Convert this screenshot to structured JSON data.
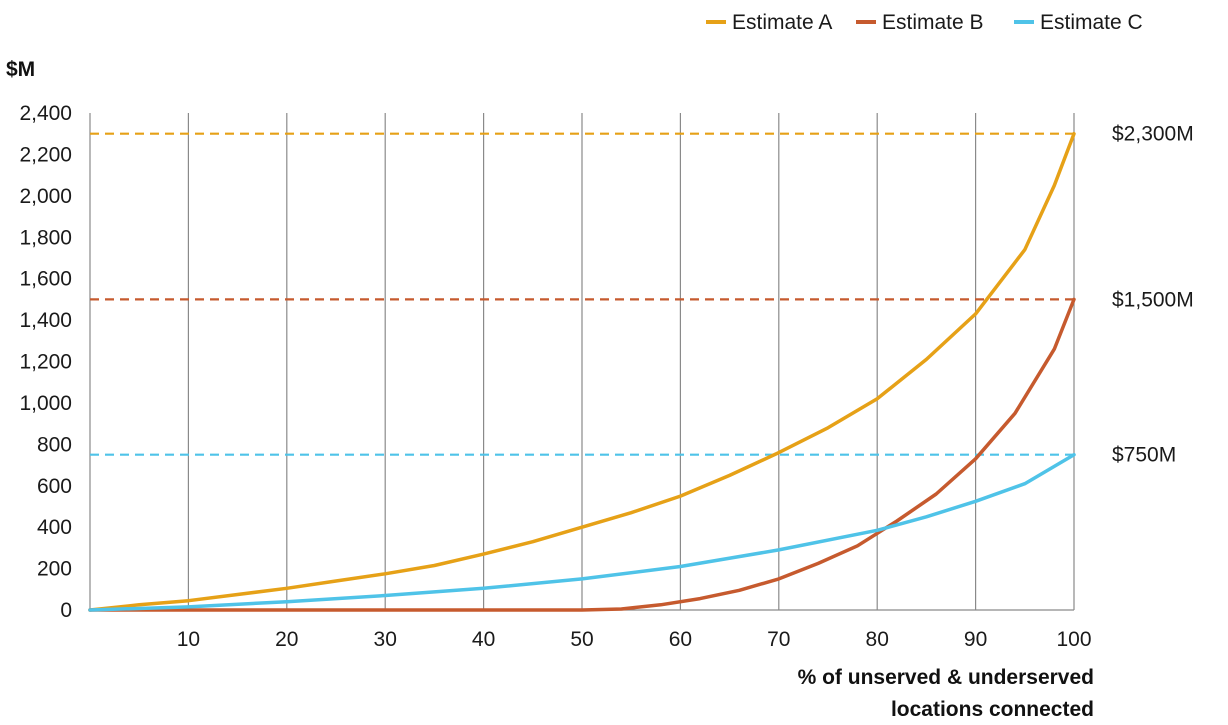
{
  "chart_data": {
    "type": "line",
    "ylabel": "$M",
    "xlabel_lines": [
      "% of unserved & underserved",
      "locations connected"
    ],
    "xlim": [
      0,
      100
    ],
    "ylim": [
      0,
      2400
    ],
    "x_ticks": [
      10,
      20,
      30,
      40,
      50,
      60,
      70,
      80,
      90,
      100
    ],
    "y_ticks": [
      0,
      200,
      400,
      600,
      800,
      1000,
      1200,
      1400,
      1600,
      1800,
      2000,
      2200,
      2400
    ],
    "y_tick_labels": [
      "0",
      "200",
      "400",
      "600",
      "800",
      "1,000",
      "1,200",
      "1,400",
      "1,600",
      "1,800",
      "2,000",
      "2,200",
      "2,400"
    ],
    "vertical_grid": true,
    "horizontal_grid": false,
    "legend_position": "top-right",
    "series": [
      {
        "name": "Estimate A",
        "color": "#E6A117",
        "x": [
          0,
          5,
          10,
          15,
          20,
          25,
          30,
          35,
          40,
          45,
          50,
          55,
          60,
          65,
          70,
          75,
          80,
          85,
          90,
          95,
          98,
          100
        ],
        "y": [
          0,
          25,
          45,
          75,
          105,
          140,
          175,
          215,
          270,
          330,
          400,
          470,
          550,
          650,
          760,
          880,
          1020,
          1210,
          1430,
          1740,
          2050,
          2300
        ]
      },
      {
        "name": "Estimate B",
        "color": "#C65A2E",
        "x": [
          0,
          50,
          54,
          58,
          62,
          66,
          70,
          74,
          78,
          82,
          86,
          90,
          94,
          98,
          100
        ],
        "y": [
          0,
          0,
          5,
          25,
          55,
          95,
          150,
          225,
          310,
          430,
          560,
          730,
          950,
          1260,
          1500
        ]
      },
      {
        "name": "Estimate C",
        "color": "#4FC3E8",
        "x": [
          0,
          10,
          20,
          30,
          40,
          50,
          60,
          70,
          80,
          85,
          90,
          95,
          100
        ],
        "y": [
          0,
          15,
          40,
          70,
          105,
          150,
          210,
          290,
          385,
          450,
          525,
          610,
          750
        ]
      }
    ],
    "reference_lines": [
      {
        "value": 2300,
        "label": "$2,300M",
        "color": "#E6A117"
      },
      {
        "value": 1500,
        "label": "$1,500M",
        "color": "#C65A2E"
      },
      {
        "value": 750,
        "label": "$750M",
        "color": "#4FC3E8"
      }
    ]
  }
}
